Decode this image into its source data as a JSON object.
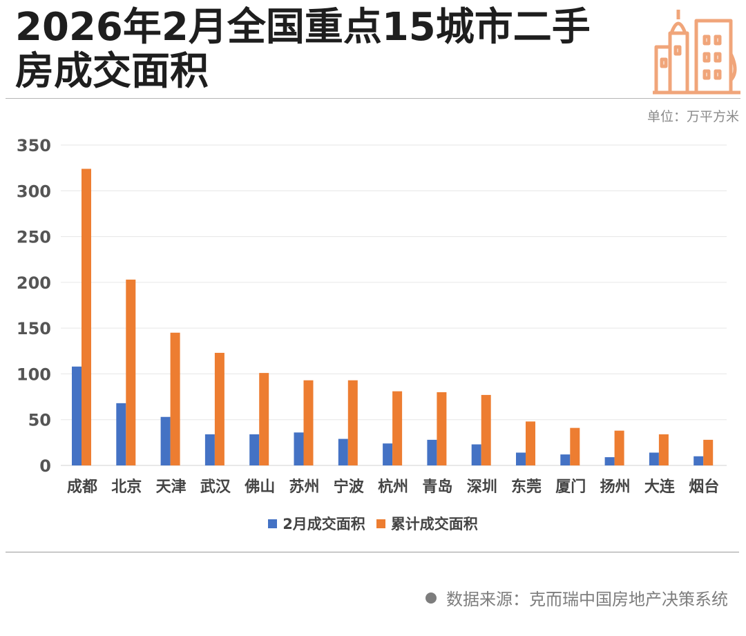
{
  "header": {
    "title_line1": "2026年2月全国重点15城市二手",
    "title_line2": "房成交面积",
    "unit": "单位：万平方米",
    "logo_icon": "city-buildings-icon"
  },
  "colors": {
    "monthly": "#4472C4",
    "cumulative": "#ED7D31",
    "logo": "#F0A57A"
  },
  "chart_data": {
    "type": "bar",
    "categories": [
      "成都",
      "北京",
      "天津",
      "武汉",
      "佛山",
      "苏州",
      "宁波",
      "杭州",
      "青岛",
      "深圳",
      "东莞",
      "厦门",
      "扬州",
      "大连",
      "烟台"
    ],
    "series": [
      {
        "name": "2月成交面积",
        "values": [
          108,
          68,
          53,
          34,
          34,
          36,
          29,
          24,
          28,
          23,
          14,
          12,
          9,
          14,
          10
        ]
      },
      {
        "name": "累计成交面积",
        "values": [
          324,
          203,
          145,
          123,
          101,
          93,
          93,
          81,
          80,
          77,
          48,
          41,
          38,
          34,
          28
        ]
      }
    ],
    "ylim": [
      0,
      350
    ],
    "yticks": [
      0,
      50,
      100,
      150,
      200,
      250,
      300,
      350
    ],
    "grid": true,
    "legend_position": "bottom"
  },
  "footer": {
    "source": "数据来源：克而瑞中国房地产决策系统"
  }
}
